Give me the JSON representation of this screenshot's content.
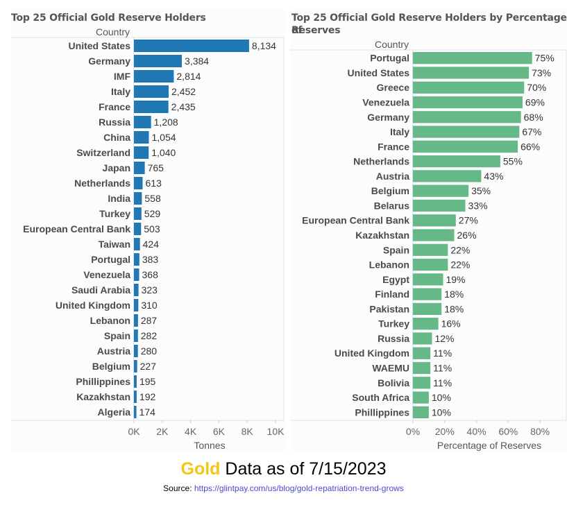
{
  "chart_data": [
    {
      "type": "bar",
      "orientation": "horizontal",
      "title": "Top 25 Official Gold Reserve Holders",
      "column_header": "Country",
      "xlabel": "Tonnes",
      "ylabel": "Country",
      "xlim": [
        0,
        10000
      ],
      "tick_labels": [
        "0K",
        "2K",
        "4K",
        "6K",
        "8K",
        "10K"
      ],
      "tick_values": [
        0,
        2000,
        4000,
        6000,
        8000,
        10000
      ],
      "bar_color": "#1F77B4",
      "grid": false,
      "categories": [
        "United States",
        "Germany",
        "IMF",
        "Italy",
        "France",
        "Russia",
        "China",
        "Switzerland",
        "Japan",
        "Netherlands",
        "India",
        "Turkey",
        "European Central Bank",
        "Taiwan",
        "Portugal",
        "Venezuela",
        "Saudi Arabia",
        "United Kingdom",
        "Lebanon",
        "Spain",
        "Austria",
        "Belgium",
        "Phillippines",
        "Kazakhstan",
        "Algeria"
      ],
      "values": [
        8134,
        3384,
        2814,
        2452,
        2435,
        1208,
        1054,
        1040,
        765,
        613,
        558,
        529,
        503,
        424,
        383,
        368,
        323,
        310,
        287,
        282,
        280,
        227,
        195,
        192,
        174
      ],
      "value_labels": [
        "8,134",
        "3,384",
        "2,814",
        "2,452",
        "2,435",
        "1,208",
        "1,054",
        "1,040",
        "765",
        "613",
        "558",
        "529",
        "503",
        "424",
        "383",
        "368",
        "323",
        "310",
        "287",
        "282",
        "280",
        "227",
        "195",
        "192",
        "174"
      ]
    },
    {
      "type": "bar",
      "orientation": "horizontal",
      "title": "Top 25 Official Gold Reserve Holders by Percentage of Reserves",
      "title_lines": [
        "Top 25 Official Gold Reserve Holders by Percentage of",
        "Reserves"
      ],
      "column_header": "Country",
      "xlabel": "Percentage of Reserves",
      "ylabel": "Country",
      "xlim": [
        0,
        90
      ],
      "tick_labels": [
        "0%",
        "20%",
        "40%",
        "60%",
        "80%"
      ],
      "tick_values": [
        0,
        20,
        40,
        60,
        80
      ],
      "bar_color": "#66B886",
      "grid": false,
      "categories": [
        "Portugal",
        "United States",
        "Greece",
        "Venezuela",
        "Germany",
        "Italy",
        "France",
        "Netherlands",
        "Austria",
        "Belgium",
        "Belarus",
        "European Central Bank",
        "Kazakhstan",
        "Spain",
        "Lebanon",
        "Egypt",
        "Finland",
        "Pakistan",
        "Turkey",
        "Russia",
        "United Kingdom",
        "WAEMU",
        "Bolivia",
        "South Africa",
        "Phillippines"
      ],
      "values": [
        75,
        73,
        70,
        69,
        68,
        67,
        66,
        55,
        43,
        35,
        33,
        27,
        26,
        22,
        22,
        19,
        18,
        18,
        16,
        12,
        11,
        11,
        11,
        10,
        10
      ],
      "value_labels": [
        "75%",
        "73%",
        "70%",
        "69%",
        "68%",
        "67%",
        "66%",
        "55%",
        "43%",
        "35%",
        "33%",
        "27%",
        "26%",
        "22%",
        "22%",
        "19%",
        "18%",
        "18%",
        "16%",
        "12%",
        "11%",
        "11%",
        "11%",
        "10%",
        "10%"
      ]
    }
  ],
  "footer": {
    "title_highlight": "Gold",
    "title_rest": " Data as of 7/15/2023",
    "highlight_color": "#F5C518",
    "source_label": "Source: ",
    "source_link": "https://glintpay.com/us/blog/gold-repatriation-trend-grows"
  }
}
